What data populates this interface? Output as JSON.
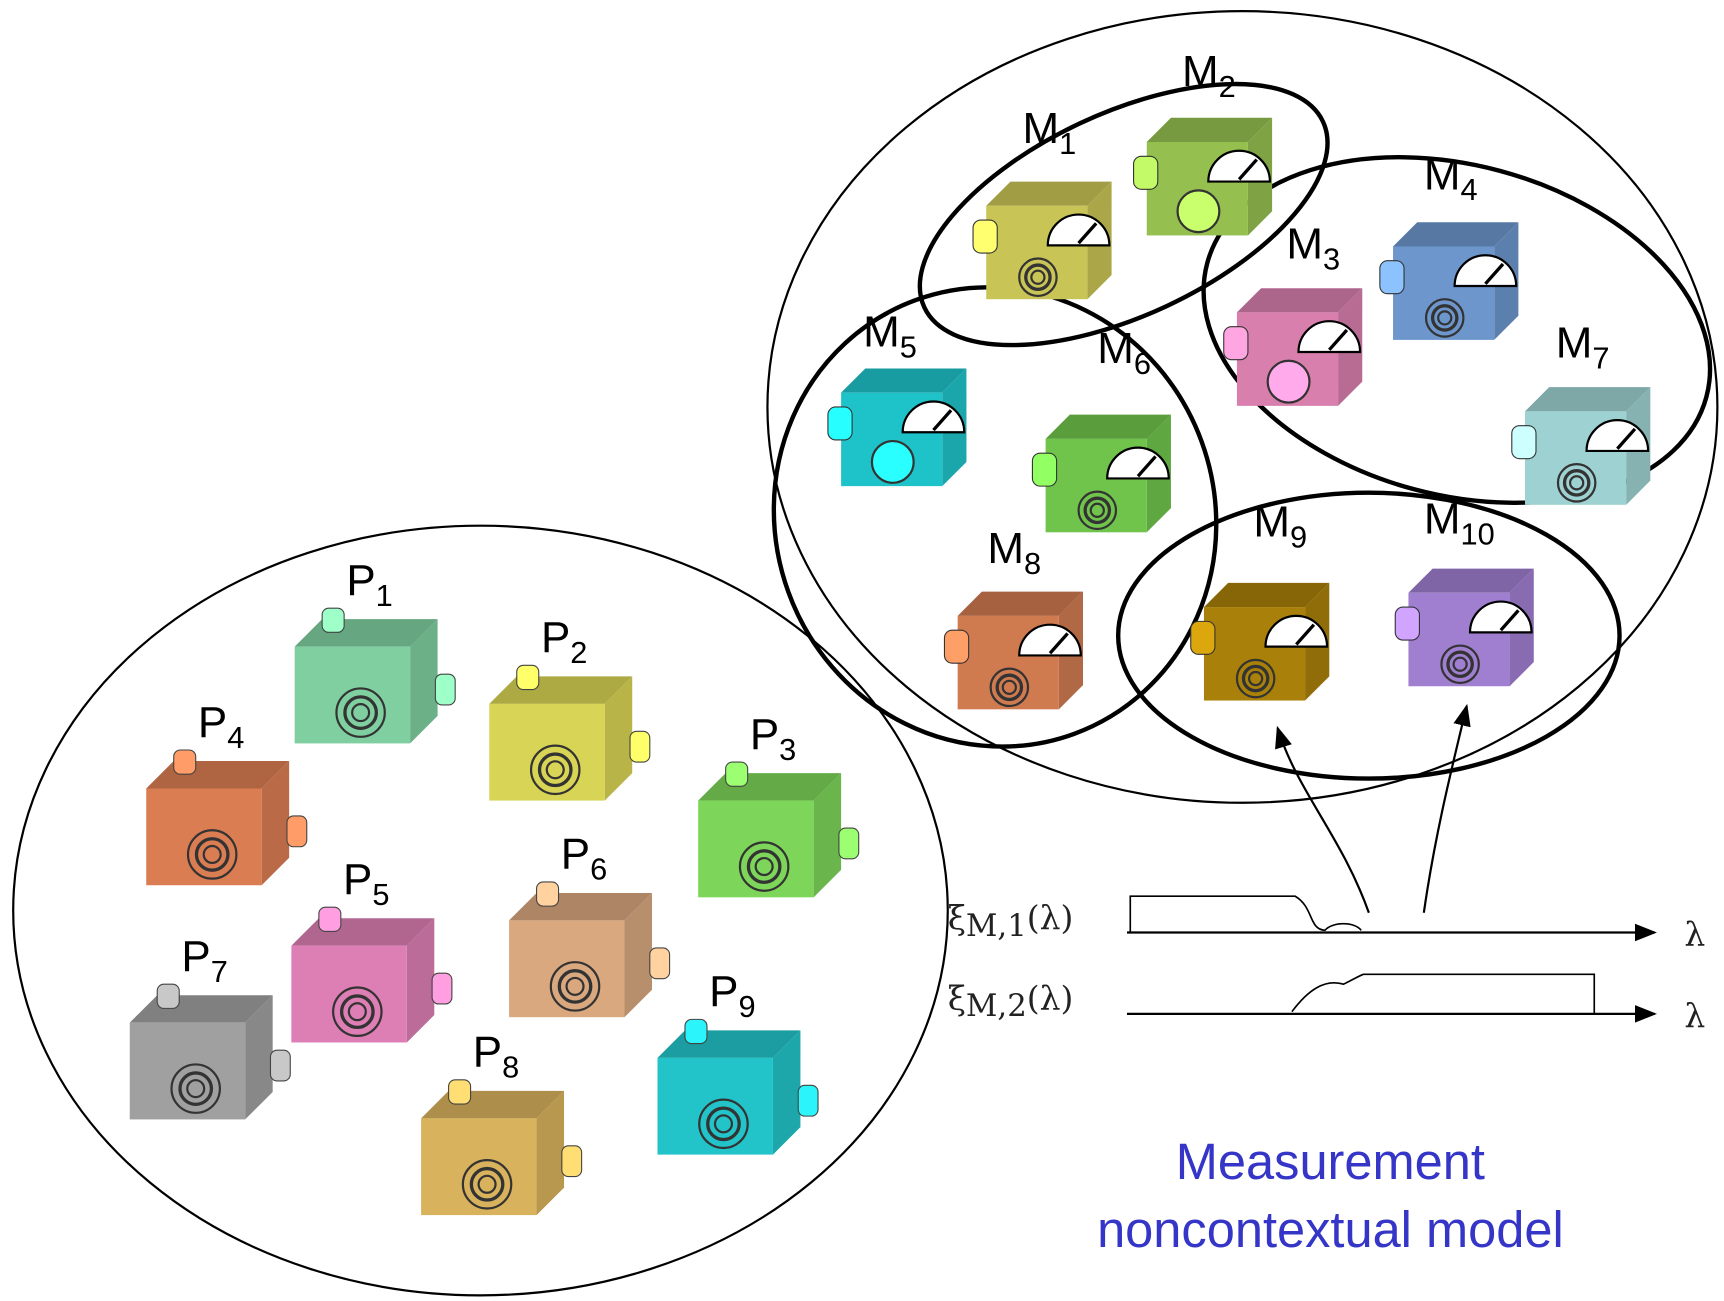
{
  "preparations": [
    {
      "base": "P",
      "sub": "1"
    },
    {
      "base": "P",
      "sub": "2"
    },
    {
      "base": "P",
      "sub": "3"
    },
    {
      "base": "P",
      "sub": "4"
    },
    {
      "base": "P",
      "sub": "5"
    },
    {
      "base": "P",
      "sub": "6"
    },
    {
      "base": "P",
      "sub": "7"
    },
    {
      "base": "P",
      "sub": "8"
    },
    {
      "base": "P",
      "sub": "9"
    }
  ],
  "measurements": [
    {
      "base": "M",
      "sub": "1"
    },
    {
      "base": "M",
      "sub": "2"
    },
    {
      "base": "M",
      "sub": "3"
    },
    {
      "base": "M",
      "sub": "4"
    },
    {
      "base": "M",
      "sub": "5"
    },
    {
      "base": "M",
      "sub": "6"
    },
    {
      "base": "M",
      "sub": "7"
    },
    {
      "base": "M",
      "sub": "8"
    },
    {
      "base": "M",
      "sub": "9"
    },
    {
      "base": "M",
      "sub": "10"
    }
  ],
  "response_functions": [
    {
      "symbol": "ξ",
      "sub": "M,1",
      "arg": "(λ)",
      "axis_label": "λ"
    },
    {
      "symbol": "ξ",
      "sub": "M,2",
      "arg": "(λ)",
      "axis_label": "λ"
    }
  ],
  "caption": {
    "line1": "Measurement",
    "line2": "noncontextual model"
  }
}
